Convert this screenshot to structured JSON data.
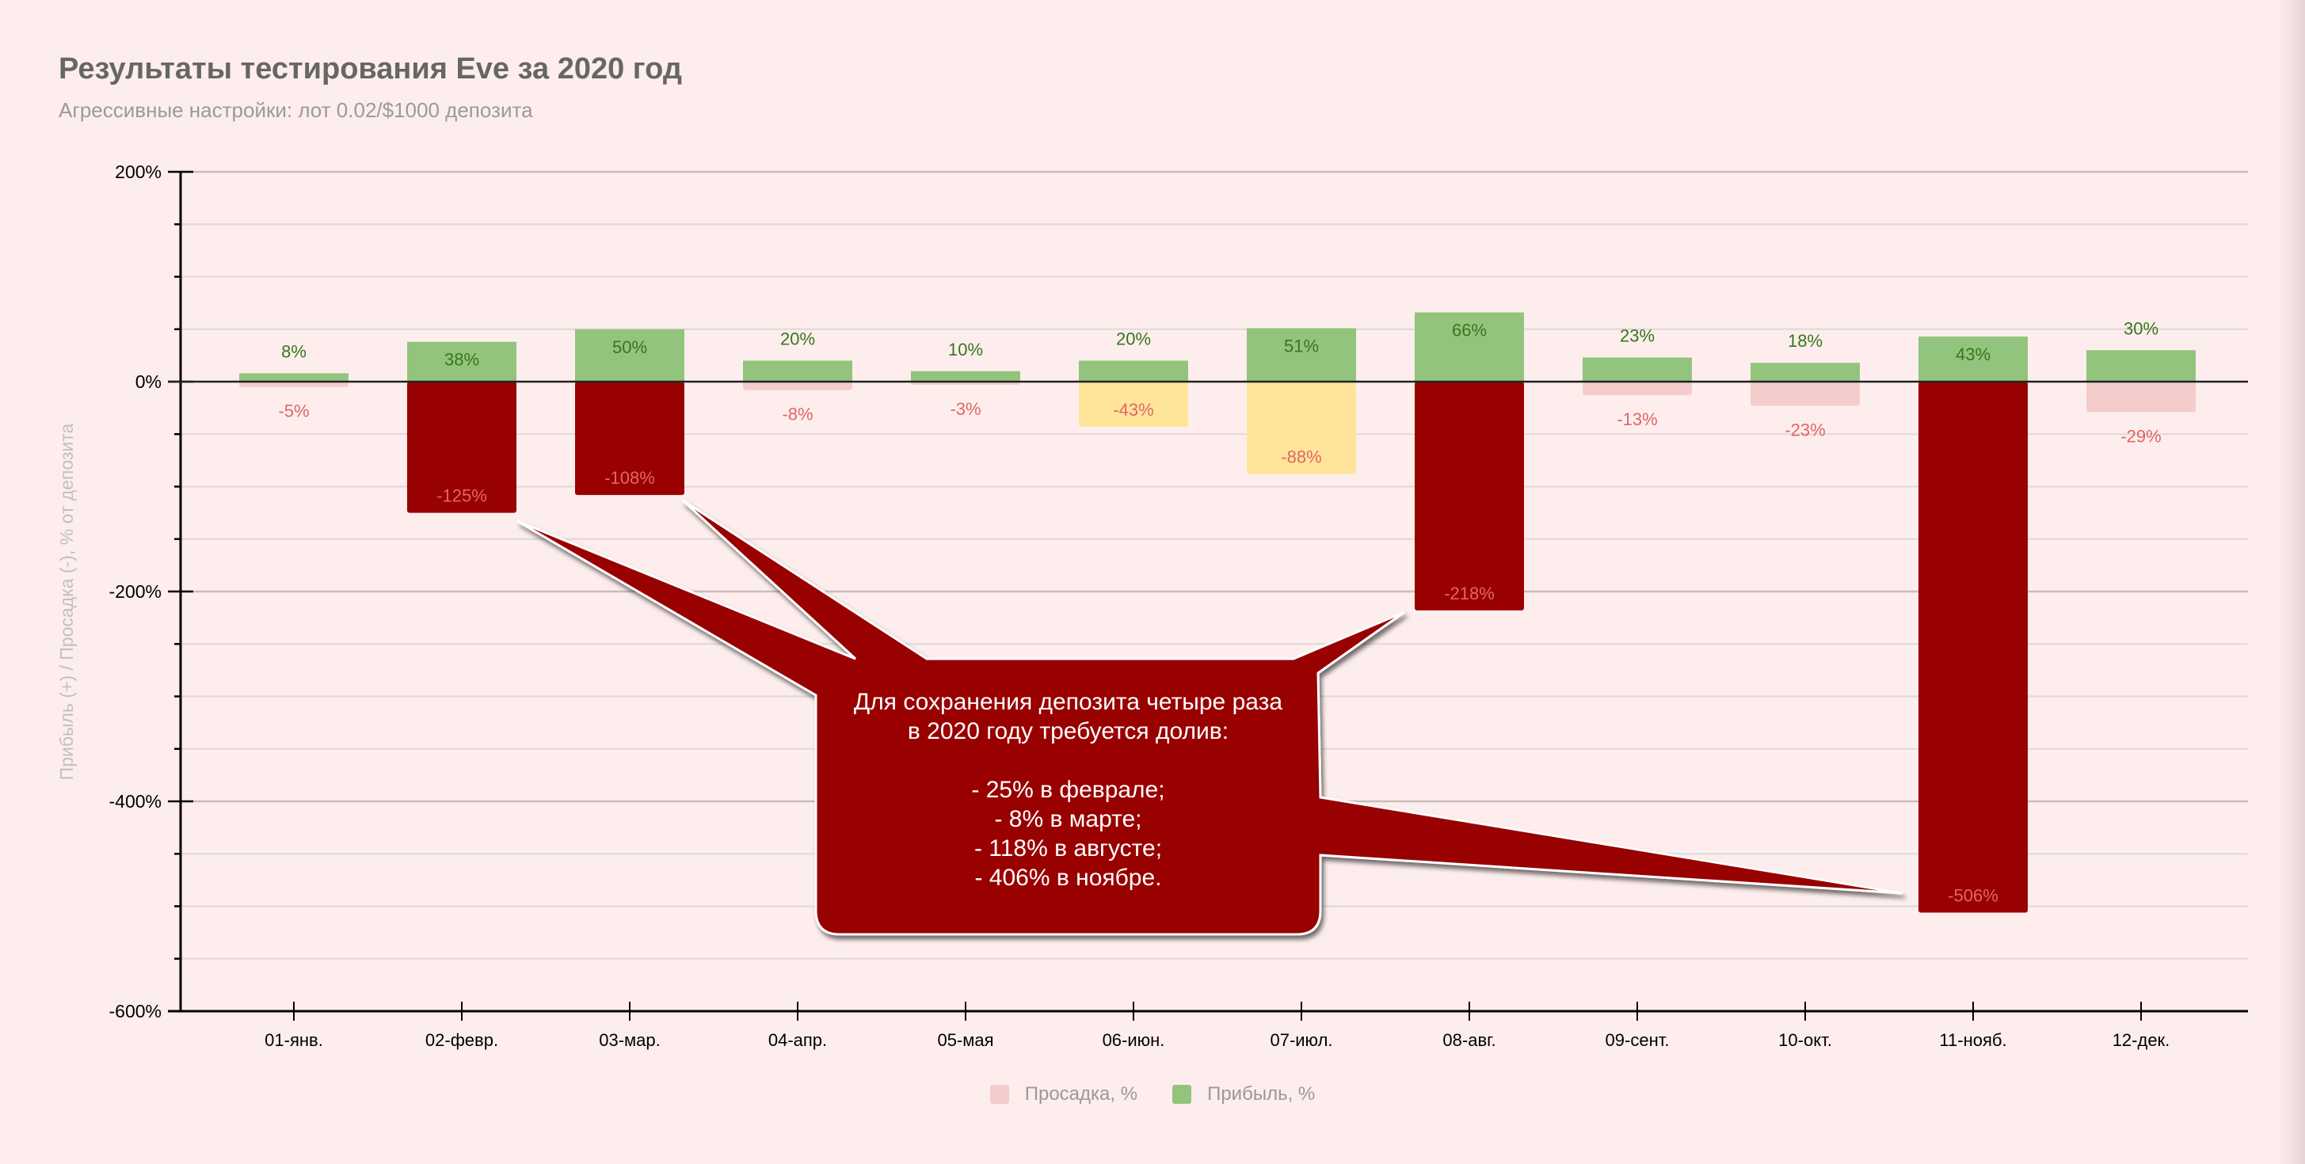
{
  "header": {
    "title": "Результаты тестирования Eve за 2020 год",
    "subtitle": "Агрессивные настройки: лот 0.02/$1000 депозита"
  },
  "colors": {
    "background": "#fdeeed",
    "profit_bar": "#93c47d",
    "profit_label": "#38761d",
    "drawdown_bar": "#f4cccc",
    "drawdown_warning_bar": "#ffe599",
    "drawdown_critical_bar": "#990000",
    "drawdown_label": "#e06666",
    "callout": "#990000"
  },
  "callout": {
    "text": "Для сохранения депозита четыре раза\nв 2020 году требуется долив:\n\n- 25% в феврале;\n- 8% в марте;\n- 118% в августе;\n- 406% в ноябре."
  },
  "legend": {
    "items": [
      {
        "label": "Просадка, %",
        "color": "#f4cccc"
      },
      {
        "label": "Прибыль, %",
        "color": "#93c47d"
      }
    ]
  },
  "chart_data": {
    "type": "bar",
    "title": "Результаты тестирования Eve за 2020 год",
    "subtitle": "Агрессивные настройки: лот 0.02/$1000 депозита",
    "xlabel": "",
    "ylabel": "Прибыль (+) / Просадка (-), % от депозита",
    "ylim": [
      -600,
      200
    ],
    "yticks": [
      "200%",
      "0%",
      "-200%",
      "-400%",
      "-600%"
    ],
    "grid": true,
    "legend_position": "bottom",
    "categories": [
      "01-янв.",
      "02-февр.",
      "03-мар.",
      "04-апр.",
      "05-мая",
      "06-июн.",
      "07-июл.",
      "08-авг.",
      "09-сент.",
      "10-окт.",
      "11-нояб.",
      "12-дек."
    ],
    "series": [
      {
        "name": "Просадка, %",
        "values": [
          -5,
          -125,
          -108,
          -8,
          -3,
          -43,
          -88,
          -218,
          -13,
          -23,
          -506,
          -29
        ],
        "bar_style": [
          "normal",
          "critical",
          "critical",
          "normal",
          "normal",
          "warning",
          "warning",
          "critical",
          "normal",
          "normal",
          "critical",
          "normal"
        ]
      },
      {
        "name": "Прибыль, %",
        "values": [
          8,
          38,
          50,
          20,
          10,
          20,
          51,
          66,
          23,
          18,
          43,
          30
        ]
      }
    ],
    "annotations": [
      {
        "text": "Для сохранения депозита четыре раза в 2020 году требуется долив: - 25% в феврале; - 8% в марте; - 118% в августе; - 406% в ноябре.",
        "points_to": [
          "02-февр.",
          "03-мар.",
          "08-авг.",
          "11-нояб."
        ]
      }
    ]
  }
}
